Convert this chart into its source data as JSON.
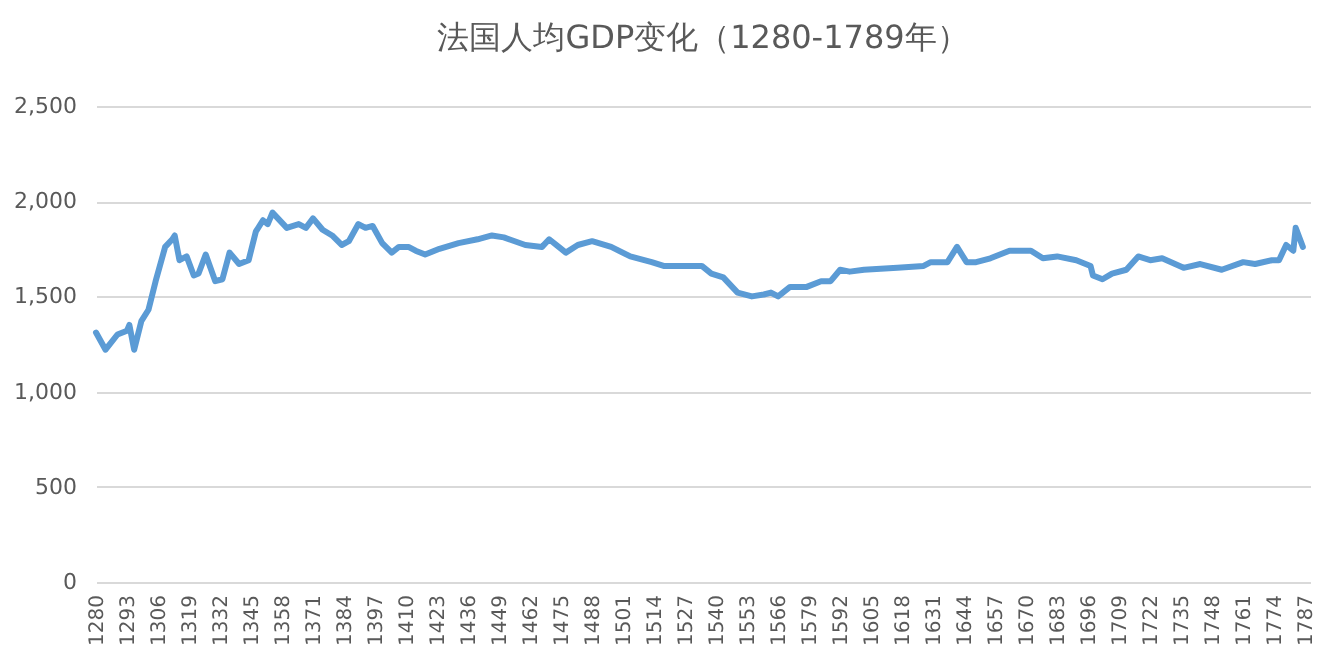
{
  "chart_data": {
    "type": "line",
    "title": "法国人均GDP变化（1280-1789年）",
    "x": [
      1280,
      1284,
      1289,
      1293,
      1294,
      1296,
      1299,
      1302,
      1305,
      1309,
      1312,
      1313,
      1315,
      1318,
      1321,
      1323,
      1326,
      1330,
      1333,
      1336,
      1340,
      1344,
      1347,
      1350,
      1352,
      1354,
      1360,
      1365,
      1368,
      1371,
      1375,
      1379,
      1383,
      1386,
      1390,
      1393,
      1396,
      1400,
      1404,
      1407,
      1411,
      1414,
      1418,
      1424,
      1432,
      1440,
      1446,
      1451,
      1460,
      1467,
      1470,
      1474,
      1477,
      1482,
      1488,
      1496,
      1504,
      1513,
      1518,
      1534,
      1538,
      1543,
      1549,
      1555,
      1560,
      1563,
      1566,
      1571,
      1578,
      1584,
      1588,
      1592,
      1596,
      1602,
      1616,
      1627,
      1630,
      1637,
      1641,
      1645,
      1649,
      1655,
      1663,
      1672,
      1677,
      1683,
      1691,
      1697,
      1698,
      1702,
      1706,
      1712,
      1717,
      1722,
      1727,
      1736,
      1743,
      1752,
      1761,
      1766,
      1773,
      1776,
      1779,
      1782,
      1783,
      1786
    ],
    "series": [
      {
        "color": "#5b9bd5",
        "values": [
          1310,
          1220,
          1300,
          1320,
          1350,
          1220,
          1370,
          1430,
          1580,
          1760,
          1800,
          1820,
          1690,
          1710,
          1610,
          1620,
          1720,
          1580,
          1590,
          1730,
          1670,
          1690,
          1840,
          1900,
          1880,
          1940,
          1860,
          1880,
          1860,
          1910,
          1850,
          1820,
          1770,
          1790,
          1880,
          1860,
          1870,
          1780,
          1730,
          1760,
          1760,
          1740,
          1720,
          1750,
          1780,
          1800,
          1820,
          1810,
          1770,
          1760,
          1800,
          1760,
          1730,
          1770,
          1790,
          1760,
          1710,
          1680,
          1660,
          1660,
          1620,
          1600,
          1520,
          1500,
          1510,
          1520,
          1500,
          1550,
          1550,
          1580,
          1580,
          1640,
          1630,
          1640,
          1650,
          1660,
          1680,
          1680,
          1760,
          1680,
          1680,
          1700,
          1740,
          1740,
          1700,
          1710,
          1690,
          1660,
          1610,
          1590,
          1620,
          1640,
          1710,
          1690,
          1700,
          1650,
          1670,
          1640,
          1680,
          1670,
          1690,
          1690,
          1770,
          1740,
          1860,
          1760
        ]
      }
    ],
    "xlim": [
      1280,
      1789
    ],
    "xticks": [
      1280,
      1293,
      1306,
      1319,
      1332,
      1345,
      1358,
      1371,
      1384,
      1397,
      1410,
      1423,
      1436,
      1449,
      1462,
      1475,
      1488,
      1501,
      1514,
      1527,
      1540,
      1553,
      1566,
      1579,
      1592,
      1605,
      1618,
      1631,
      1644,
      1657,
      1670,
      1683,
      1696,
      1709,
      1722,
      1735,
      1748,
      1761,
      1774,
      1787
    ],
    "ylim": [
      0,
      2500
    ],
    "yticks": [
      0,
      500,
      {
        "value": 1000,
        "label": "1,000"
      },
      {
        "value": 1500,
        "label": "1,500"
      },
      {
        "value": 2000,
        "label": "2,000"
      },
      {
        "value": 2500,
        "label": "2,500"
      }
    ],
    "grid": "y",
    "marker": "none",
    "line_style": "solid"
  }
}
